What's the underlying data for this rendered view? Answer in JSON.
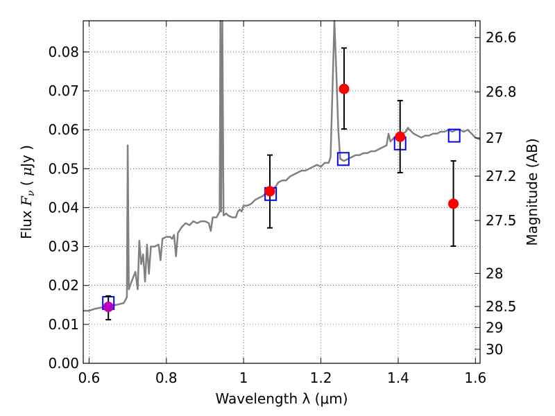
{
  "chart_data": {
    "type": "scatter",
    "xlabel": "Wavelength  λ (μm)",
    "ylabel": "Flux  Fν ( μJy )",
    "ylabel_parts": [
      "Flux  ",
      "F",
      "ν",
      "  (  ",
      "μ",
      "Jy )"
    ],
    "y2label": "Magnitude (AB)",
    "xlim": [
      0.585,
      1.612
    ],
    "ylim": [
      0.0,
      0.088
    ],
    "grid": true,
    "x_ticks": [
      {
        "value": 0.6,
        "label": "0.6"
      },
      {
        "value": 0.8,
        "label": "0.8"
      },
      {
        "value": 1.0,
        "label": "1"
      },
      {
        "value": 1.2,
        "label": "1.2"
      },
      {
        "value": 1.4,
        "label": "1.4"
      },
      {
        "value": 1.6,
        "label": "1.6"
      }
    ],
    "y_ticks": [
      {
        "value": 0.0,
        "label": "0.00"
      },
      {
        "value": 0.01,
        "label": "0.01"
      },
      {
        "value": 0.02,
        "label": "0.02"
      },
      {
        "value": 0.03,
        "label": "0.03"
      },
      {
        "value": 0.04,
        "label": "0.04"
      },
      {
        "value": 0.05,
        "label": "0.05"
      },
      {
        "value": 0.06,
        "label": "0.06"
      },
      {
        "value": 0.07,
        "label": "0.07"
      },
      {
        "value": 0.08,
        "label": "0.08"
      }
    ],
    "y2_ticks": [
      {
        "flux": 0.0837,
        "label": "26.6"
      },
      {
        "flux": 0.0697,
        "label": "26.8"
      },
      {
        "flux": 0.0579,
        "label": "27"
      },
      {
        "flux": 0.0481,
        "label": "27.2"
      },
      {
        "flux": 0.0367,
        "label": "27.5"
      },
      {
        "flux": 0.0231,
        "label": "28"
      },
      {
        "flux": 0.0146,
        "label": "28.5"
      },
      {
        "flux": 0.0092,
        "label": "29"
      },
      {
        "flux": 0.0036,
        "label": "30"
      }
    ],
    "series": [
      {
        "kind": "line",
        "color": "#808080",
        "points": [
          [
            0.585,
            0.0135
          ],
          [
            0.6,
            0.0135
          ],
          [
            0.615,
            0.014
          ],
          [
            0.63,
            0.0143
          ],
          [
            0.65,
            0.0148
          ],
          [
            0.67,
            0.015
          ],
          [
            0.69,
            0.0155
          ],
          [
            0.698,
            0.017
          ],
          [
            0.7,
            0.056
          ],
          [
            0.703,
            0.019
          ],
          [
            0.71,
            0.021
          ],
          [
            0.72,
            0.0235
          ],
          [
            0.726,
            0.019
          ],
          [
            0.73,
            0.0315
          ],
          [
            0.735,
            0.0255
          ],
          [
            0.74,
            0.028
          ],
          [
            0.745,
            0.021
          ],
          [
            0.75,
            0.0305
          ],
          [
            0.755,
            0.023
          ],
          [
            0.76,
            0.03
          ],
          [
            0.77,
            0.03
          ],
          [
            0.78,
            0.0305
          ],
          [
            0.785,
            0.0265
          ],
          [
            0.79,
            0.032
          ],
          [
            0.8,
            0.0325
          ],
          [
            0.81,
            0.0325
          ],
          [
            0.815,
            0.032
          ],
          [
            0.82,
            0.033
          ],
          [
            0.825,
            0.0275
          ],
          [
            0.83,
            0.0335
          ],
          [
            0.84,
            0.035
          ],
          [
            0.85,
            0.036
          ],
          [
            0.86,
            0.0355
          ],
          [
            0.87,
            0.0365
          ],
          [
            0.88,
            0.036
          ],
          [
            0.89,
            0.0365
          ],
          [
            0.9,
            0.0365
          ],
          [
            0.91,
            0.036
          ],
          [
            0.915,
            0.034
          ],
          [
            0.92,
            0.0375
          ],
          [
            0.93,
            0.0375
          ],
          [
            0.938,
            0.039
          ],
          [
            0.94,
            0.088
          ],
          [
            0.942,
            0.039
          ],
          [
            0.945,
            0.088
          ],
          [
            0.948,
            0.038
          ],
          [
            0.955,
            0.0385
          ],
          [
            0.96,
            0.038
          ],
          [
            0.97,
            0.0375
          ],
          [
            0.98,
            0.0375
          ],
          [
            0.985,
            0.039
          ],
          [
            0.99,
            0.0395
          ],
          [
            0.995,
            0.039
          ],
          [
            1.0,
            0.0405
          ],
          [
            1.01,
            0.0405
          ],
          [
            1.02,
            0.041
          ],
          [
            1.03,
            0.042
          ],
          [
            1.04,
            0.0425
          ],
          [
            1.05,
            0.043
          ],
          [
            1.06,
            0.044
          ],
          [
            1.07,
            0.0445
          ],
          [
            1.08,
            0.045
          ],
          [
            1.09,
            0.0465
          ],
          [
            1.1,
            0.047
          ],
          [
            1.11,
            0.047
          ],
          [
            1.12,
            0.048
          ],
          [
            1.13,
            0.0485
          ],
          [
            1.14,
            0.049
          ],
          [
            1.15,
            0.0495
          ],
          [
            1.16,
            0.0495
          ],
          [
            1.17,
            0.05
          ],
          [
            1.18,
            0.0505
          ],
          [
            1.19,
            0.051
          ],
          [
            1.2,
            0.0505
          ],
          [
            1.21,
            0.0515
          ],
          [
            1.22,
            0.0515
          ],
          [
            1.225,
            0.053
          ],
          [
            1.23,
            0.07
          ],
          [
            1.235,
            0.088
          ],
          [
            1.24,
            0.075
          ],
          [
            1.245,
            0.06
          ],
          [
            1.25,
            0.0525
          ],
          [
            1.26,
            0.052
          ],
          [
            1.27,
            0.0525
          ],
          [
            1.28,
            0.053
          ],
          [
            1.29,
            0.0535
          ],
          [
            1.3,
            0.0535
          ],
          [
            1.31,
            0.054
          ],
          [
            1.32,
            0.054
          ],
          [
            1.33,
            0.0545
          ],
          [
            1.34,
            0.0545
          ],
          [
            1.35,
            0.055
          ],
          [
            1.36,
            0.0555
          ],
          [
            1.37,
            0.056
          ],
          [
            1.375,
            0.059
          ],
          [
            1.38,
            0.057
          ],
          [
            1.39,
            0.058
          ],
          [
            1.4,
            0.0585
          ],
          [
            1.41,
            0.059
          ],
          [
            1.42,
            0.0595
          ],
          [
            1.425,
            0.0605
          ],
          [
            1.43,
            0.06
          ],
          [
            1.44,
            0.059
          ],
          [
            1.45,
            0.0585
          ],
          [
            1.46,
            0.058
          ],
          [
            1.47,
            0.0585
          ],
          [
            1.48,
            0.0585
          ],
          [
            1.49,
            0.059
          ],
          [
            1.5,
            0.059
          ],
          [
            1.51,
            0.0595
          ],
          [
            1.52,
            0.0595
          ],
          [
            1.53,
            0.06
          ],
          [
            1.54,
            0.0595
          ],
          [
            1.55,
            0.06
          ],
          [
            1.56,
            0.06
          ],
          [
            1.57,
            0.0595
          ],
          [
            1.58,
            0.06
          ],
          [
            1.59,
            0.059
          ],
          [
            1.6,
            0.058
          ],
          [
            1.612,
            0.0575
          ]
        ]
      },
      {
        "kind": "squares",
        "color": "#0000ff",
        "points": [
          [
            0.65,
            0.0155
          ],
          [
            1.07,
            0.0435
          ],
          [
            1.258,
            0.0525
          ],
          [
            1.405,
            0.0565
          ],
          [
            1.545,
            0.0585
          ]
        ]
      },
      {
        "kind": "circles",
        "color": "#ff0000",
        "points": [
          {
            "x": 1.068,
            "y": 0.0442,
            "yerr_low": 0.0348,
            "yerr_high": 0.0535
          },
          {
            "x": 1.26,
            "y": 0.0705,
            "yerr_low": 0.0602,
            "yerr_high": 0.081
          },
          {
            "x": 1.405,
            "y": 0.0582,
            "yerr_low": 0.049,
            "yerr_high": 0.0675
          },
          {
            "x": 1.543,
            "y": 0.041,
            "yerr_low": 0.0301,
            "yerr_high": 0.052
          }
        ]
      },
      {
        "kind": "circles",
        "color": "#bf00bf",
        "points": [
          {
            "x": 0.65,
            "y": 0.0145,
            "yerr_low": 0.0112,
            "yerr_high": 0.0173
          }
        ]
      }
    ]
  }
}
